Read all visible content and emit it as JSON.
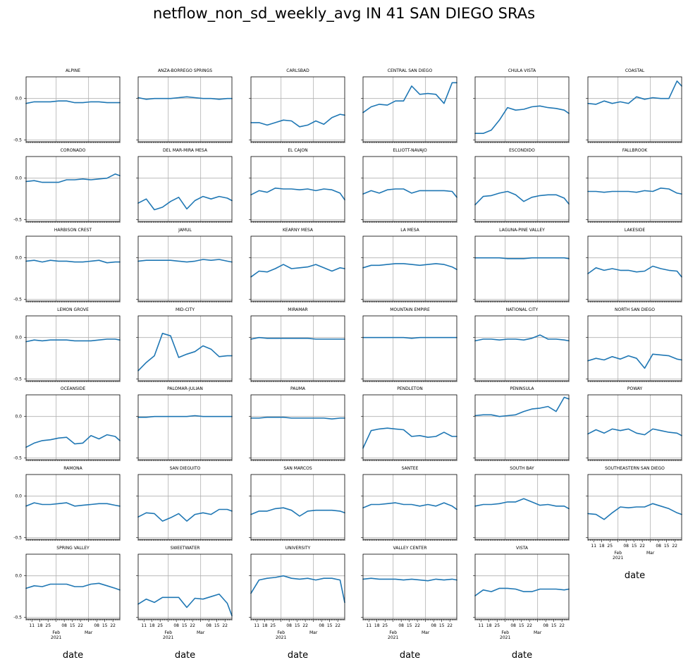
{
  "chart_data": {
    "type": "line",
    "title": "netflow_non_sd_weekly_avg IN 41 SAN DIEGO SRAs",
    "xlabel": "date",
    "x": [
      "2021-01-06",
      "2021-01-13",
      "2021-01-20",
      "2021-01-27",
      "2021-02-03",
      "2021-02-10",
      "2021-02-17",
      "2021-02-24",
      "2021-03-03",
      "2021-03-10",
      "2021-03-17",
      "2021-03-24",
      "2021-03-28"
    ],
    "xlim": [
      "2021-01-06",
      "2021-03-28"
    ],
    "ylim": [
      -0.52,
      0.26
    ],
    "yticks": [
      0.0,
      -0.5
    ],
    "ytick_labels": [
      "0.0",
      "-0.5"
    ],
    "xtick_labels": [
      {
        "date": "2021-01-11",
        "label": "11"
      },
      {
        "date": "2021-01-18",
        "label": "18"
      },
      {
        "date": "2021-01-25",
        "label": "25"
      },
      {
        "date": "2021-02-01",
        "label": "Feb\n2021"
      },
      {
        "date": "2021-02-08",
        "label": "08"
      },
      {
        "date": "2021-02-15",
        "label": "15"
      },
      {
        "date": "2021-02-22",
        "label": "22"
      },
      {
        "date": "2021-03-01",
        "label": "Mar"
      },
      {
        "date": "2021-03-08",
        "label": "08"
      },
      {
        "date": "2021-03-15",
        "label": "15"
      },
      {
        "date": "2021-03-22",
        "label": "22"
      }
    ],
    "gridlines_x": [
      "2021-02-01",
      "2021-03-01"
    ],
    "grid": true,
    "layout": {
      "rows": 7,
      "cols": 6
    },
    "series": [
      {
        "name": "ALPINE",
        "values": [
          -0.06,
          -0.04,
          -0.04,
          -0.04,
          -0.03,
          -0.03,
          -0.05,
          -0.05,
          -0.04,
          -0.04,
          -0.05,
          -0.05,
          -0.05
        ]
      },
      {
        "name": "ANZA-BORREGO SPRINGS",
        "values": [
          0.01,
          -0.01,
          0.0,
          0.0,
          0.0,
          0.01,
          0.02,
          0.01,
          0.0,
          0.0,
          -0.01,
          0.0,
          0.0
        ]
      },
      {
        "name": "CARLSBAD",
        "values": [
          -0.29,
          -0.29,
          -0.32,
          -0.29,
          -0.26,
          -0.27,
          -0.34,
          -0.32,
          -0.27,
          -0.31,
          -0.23,
          -0.19,
          -0.2
        ]
      },
      {
        "name": "CENTRAL SAN DIEGO",
        "values": [
          -0.17,
          -0.1,
          -0.07,
          -0.08,
          -0.03,
          -0.03,
          0.15,
          0.05,
          0.06,
          0.05,
          -0.06,
          0.19,
          0.19
        ]
      },
      {
        "name": "CHULA VISTA",
        "values": [
          -0.42,
          -0.42,
          -0.38,
          -0.26,
          -0.11,
          -0.14,
          -0.13,
          -0.1,
          -0.09,
          -0.11,
          -0.12,
          -0.14,
          -0.18
        ]
      },
      {
        "name": "COASTAL",
        "values": [
          -0.06,
          -0.07,
          -0.03,
          -0.06,
          -0.04,
          -0.06,
          0.02,
          -0.01,
          0.01,
          0.0,
          0.0,
          0.21,
          0.15
        ]
      },
      {
        "name": "CORONADO",
        "values": [
          -0.04,
          -0.03,
          -0.05,
          -0.05,
          -0.05,
          -0.02,
          -0.02,
          -0.01,
          -0.02,
          -0.01,
          0.0,
          0.05,
          0.03
        ]
      },
      {
        "name": "DEL MAR-MIRA MESA",
        "values": [
          -0.3,
          -0.25,
          -0.38,
          -0.35,
          -0.28,
          -0.23,
          -0.37,
          -0.27,
          -0.22,
          -0.25,
          -0.22,
          -0.24,
          -0.27
        ]
      },
      {
        "name": "EL CAJON",
        "values": [
          -0.2,
          -0.15,
          -0.17,
          -0.12,
          -0.13,
          -0.13,
          -0.14,
          -0.13,
          -0.15,
          -0.13,
          -0.14,
          -0.18,
          -0.26
        ]
      },
      {
        "name": "ELLIOTT-NAVAJO",
        "values": [
          -0.19,
          -0.15,
          -0.18,
          -0.14,
          -0.13,
          -0.13,
          -0.18,
          -0.15,
          -0.15,
          -0.15,
          -0.15,
          -0.16,
          -0.23
        ]
      },
      {
        "name": "ESCONDIDO",
        "values": [
          -0.32,
          -0.22,
          -0.21,
          -0.18,
          -0.16,
          -0.2,
          -0.28,
          -0.23,
          -0.21,
          -0.2,
          -0.2,
          -0.24,
          -0.31
        ]
      },
      {
        "name": "FALLBROOK",
        "values": [
          -0.16,
          -0.16,
          -0.17,
          -0.16,
          -0.16,
          -0.16,
          -0.17,
          -0.15,
          -0.16,
          -0.12,
          -0.13,
          -0.18,
          -0.19
        ]
      },
      {
        "name": "HARBISON CREST",
        "values": [
          -0.04,
          -0.03,
          -0.05,
          -0.03,
          -0.04,
          -0.04,
          -0.05,
          -0.05,
          -0.04,
          -0.03,
          -0.06,
          -0.05,
          -0.05
        ]
      },
      {
        "name": "JAMUL",
        "values": [
          -0.04,
          -0.03,
          -0.03,
          -0.03,
          -0.03,
          -0.04,
          -0.05,
          -0.04,
          -0.02,
          -0.03,
          -0.02,
          -0.04,
          -0.05
        ]
      },
      {
        "name": "KEARNY MESA",
        "values": [
          -0.23,
          -0.16,
          -0.17,
          -0.13,
          -0.08,
          -0.13,
          -0.12,
          -0.11,
          -0.08,
          -0.12,
          -0.16,
          -0.12,
          -0.13
        ]
      },
      {
        "name": "LA MESA",
        "values": [
          -0.12,
          -0.09,
          -0.09,
          -0.08,
          -0.07,
          -0.07,
          -0.08,
          -0.09,
          -0.08,
          -0.07,
          -0.08,
          -0.11,
          -0.14
        ]
      },
      {
        "name": "LAGUNA-PINE VALLEY",
        "values": [
          0.0,
          0.0,
          0.0,
          0.0,
          -0.01,
          -0.01,
          -0.01,
          0.0,
          0.0,
          0.0,
          0.0,
          0.0,
          -0.01
        ]
      },
      {
        "name": "LAKESIDE",
        "values": [
          -0.19,
          -0.12,
          -0.15,
          -0.13,
          -0.15,
          -0.15,
          -0.17,
          -0.16,
          -0.1,
          -0.13,
          -0.15,
          -0.16,
          -0.23
        ]
      },
      {
        "name": "LEMON GROVE",
        "values": [
          -0.05,
          -0.03,
          -0.04,
          -0.03,
          -0.03,
          -0.03,
          -0.04,
          -0.04,
          -0.04,
          -0.03,
          -0.02,
          -0.02,
          -0.03
        ]
      },
      {
        "name": "MID-CITY",
        "values": [
          -0.4,
          -0.3,
          -0.22,
          0.05,
          0.02,
          -0.24,
          -0.2,
          -0.17,
          -0.1,
          -0.14,
          -0.23,
          -0.22,
          -0.22
        ]
      },
      {
        "name": "MIRAMAR",
        "values": [
          -0.02,
          0.0,
          -0.01,
          -0.01,
          -0.01,
          -0.01,
          -0.01,
          -0.01,
          -0.02,
          -0.02,
          -0.02,
          -0.02,
          -0.02
        ]
      },
      {
        "name": "MOUNTAIN EMPIRE",
        "values": [
          0.0,
          0.0,
          0.0,
          0.0,
          0.0,
          0.0,
          -0.01,
          0.0,
          0.0,
          0.0,
          0.0,
          0.0,
          0.0
        ]
      },
      {
        "name": "NATIONAL CITY",
        "values": [
          -0.04,
          -0.02,
          -0.02,
          -0.03,
          -0.02,
          -0.02,
          -0.03,
          -0.01,
          0.03,
          -0.02,
          -0.02,
          -0.03,
          -0.04
        ]
      },
      {
        "name": "NORTH SAN DIEGO",
        "values": [
          -0.28,
          -0.25,
          -0.27,
          -0.23,
          -0.26,
          -0.22,
          -0.25,
          -0.37,
          -0.2,
          -0.21,
          -0.22,
          -0.26,
          -0.27
        ]
      },
      {
        "name": "OCEANSIDE",
        "values": [
          -0.37,
          -0.32,
          -0.29,
          -0.28,
          -0.26,
          -0.25,
          -0.33,
          -0.32,
          -0.23,
          -0.27,
          -0.22,
          -0.24,
          -0.29
        ]
      },
      {
        "name": "PALOMAR-JULIAN",
        "values": [
          -0.01,
          -0.01,
          0.0,
          0.0,
          0.0,
          0.0,
          0.0,
          0.01,
          0.0,
          0.0,
          0.0,
          0.0,
          0.0
        ]
      },
      {
        "name": "PAUMA",
        "values": [
          -0.02,
          -0.02,
          -0.01,
          -0.01,
          -0.01,
          -0.02,
          -0.02,
          -0.02,
          -0.02,
          -0.02,
          -0.03,
          -0.02,
          -0.02
        ]
      },
      {
        "name": "PENDLETON",
        "values": [
          -0.38,
          -0.17,
          -0.15,
          -0.14,
          -0.15,
          -0.16,
          -0.24,
          -0.23,
          -0.25,
          -0.24,
          -0.19,
          -0.24,
          -0.24
        ]
      },
      {
        "name": "PENINSULA",
        "values": [
          0.01,
          0.02,
          0.02,
          0.0,
          0.01,
          0.02,
          0.06,
          0.09,
          0.1,
          0.12,
          0.06,
          0.23,
          0.21
        ]
      },
      {
        "name": "POWAY",
        "values": [
          -0.21,
          -0.16,
          -0.2,
          -0.15,
          -0.17,
          -0.15,
          -0.2,
          -0.22,
          -0.15,
          -0.17,
          -0.19,
          -0.2,
          -0.23
        ]
      },
      {
        "name": "RAMONA",
        "values": [
          -0.12,
          -0.08,
          -0.1,
          -0.1,
          -0.09,
          -0.08,
          -0.12,
          -0.11,
          -0.1,
          -0.09,
          -0.09,
          -0.11,
          -0.12
        ]
      },
      {
        "name": "SAN DIEGUITO",
        "values": [
          -0.25,
          -0.2,
          -0.21,
          -0.3,
          -0.26,
          -0.21,
          -0.3,
          -0.22,
          -0.2,
          -0.22,
          -0.16,
          -0.16,
          -0.18
        ]
      },
      {
        "name": "SAN MARCOS",
        "values": [
          -0.22,
          -0.18,
          -0.18,
          -0.15,
          -0.14,
          -0.17,
          -0.24,
          -0.18,
          -0.17,
          -0.17,
          -0.17,
          -0.18,
          -0.2
        ]
      },
      {
        "name": "SANTEE",
        "values": [
          -0.14,
          -0.1,
          -0.1,
          -0.09,
          -0.08,
          -0.1,
          -0.1,
          -0.12,
          -0.1,
          -0.12,
          -0.08,
          -0.12,
          -0.16
        ]
      },
      {
        "name": "SOUTH BAY",
        "values": [
          -0.12,
          -0.1,
          -0.1,
          -0.09,
          -0.07,
          -0.07,
          -0.03,
          -0.07,
          -0.11,
          -0.1,
          -0.12,
          -0.12,
          -0.15
        ]
      },
      {
        "name": "SOUTHEASTERN SAN DIEGO",
        "values": [
          -0.21,
          -0.22,
          -0.28,
          -0.2,
          -0.13,
          -0.14,
          -0.13,
          -0.13,
          -0.09,
          -0.12,
          -0.15,
          -0.2,
          -0.22
        ]
      },
      {
        "name": "SPRING VALLEY",
        "values": [
          -0.15,
          -0.12,
          -0.13,
          -0.1,
          -0.1,
          -0.1,
          -0.13,
          -0.13,
          -0.1,
          -0.09,
          -0.12,
          -0.15,
          -0.17
        ]
      },
      {
        "name": "SWEETWATER",
        "values": [
          -0.34,
          -0.28,
          -0.32,
          -0.26,
          -0.26,
          -0.26,
          -0.38,
          -0.27,
          -0.28,
          -0.25,
          -0.22,
          -0.33,
          -0.48
        ]
      },
      {
        "name": "UNIVERSITY",
        "values": [
          -0.21,
          -0.05,
          -0.03,
          -0.02,
          0.0,
          -0.03,
          -0.04,
          -0.03,
          -0.05,
          -0.03,
          -0.03,
          -0.05,
          -0.32
        ]
      },
      {
        "name": "VALLEY CENTER",
        "values": [
          -0.04,
          -0.03,
          -0.04,
          -0.04,
          -0.04,
          -0.05,
          -0.04,
          -0.05,
          -0.06,
          -0.04,
          -0.05,
          -0.04,
          -0.05
        ]
      },
      {
        "name": "VISTA",
        "values": [
          -0.24,
          -0.17,
          -0.19,
          -0.15,
          -0.15,
          -0.16,
          -0.19,
          -0.19,
          -0.16,
          -0.16,
          -0.16,
          -0.17,
          -0.16
        ]
      }
    ]
  }
}
